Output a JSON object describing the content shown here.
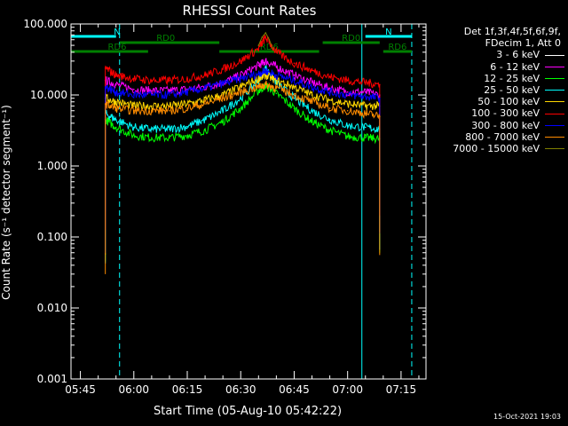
{
  "chart_data": {
    "type": "line",
    "title": "RHESSI Count Rates",
    "xlabel": "Start Time (05-Aug-10 05:42:22)",
    "ylabel": "Count Rate (s⁻¹ detector segment⁻¹)",
    "y_scale": "log",
    "ylim": [
      0.001,
      100
    ],
    "xlim": [
      "05:42:22",
      "07:22:00"
    ],
    "x_ticks": [
      "05:45",
      "06:00",
      "06:15",
      "06:30",
      "06:45",
      "07:00",
      "07:15"
    ],
    "y_ticks": [
      "0.001",
      "0.010",
      "0.100",
      "1.000",
      "10.000",
      "100.000"
    ],
    "legend_header": [
      "Det 1f,3f,4f,5f,6f,9f,",
      "FDecim 1, Att 0"
    ],
    "legend_position": "right, outside plot",
    "series": [
      {
        "name": "3 - 6 keV",
        "color": "#000000",
        "x": [
          "05:52",
          "05:55",
          "06:00",
          "06:05",
          "06:10",
          "06:15",
          "06:20",
          "06:25",
          "06:30",
          "06:35",
          "06:37",
          "06:40",
          "06:45",
          "06:50",
          "06:55",
          "07:00",
          "07:05",
          "07:09"
        ],
        "y": [
          6.0,
          5.0,
          3.5,
          4.5,
          5.5,
          6.5,
          5.5,
          6.5,
          9.5,
          14,
          16,
          14,
          10,
          7.5,
          5.0,
          3.5,
          3.5,
          3.0
        ]
      },
      {
        "name": "6 - 12 keV",
        "color": "#ff00ff",
        "x": [
          "05:52",
          "05:55",
          "06:00",
          "06:05",
          "06:10",
          "06:15",
          "06:20",
          "06:25",
          "06:30",
          "06:35",
          "06:37",
          "06:40",
          "06:45",
          "06:50",
          "06:55",
          "07:00",
          "07:05",
          "07:09"
        ],
        "y": [
          16,
          14,
          12,
          11.5,
          11.5,
          12,
          13,
          15,
          19,
          26,
          30,
          25,
          19,
          15,
          12.5,
          11,
          11,
          10
        ]
      },
      {
        "name": "12 - 25 keV",
        "color": "#00ff00",
        "x": [
          "05:52",
          "05:55",
          "06:00",
          "06:05",
          "06:10",
          "06:15",
          "06:20",
          "06:25",
          "06:30",
          "06:35",
          "06:37",
          "06:40",
          "06:45",
          "06:50",
          "06:55",
          "07:00",
          "07:05",
          "07:09"
        ],
        "y": [
          4.5,
          3.5,
          2.7,
          2.5,
          2.5,
          2.7,
          3.2,
          4.2,
          6.5,
          11.5,
          13.5,
          10.5,
          6.5,
          4.2,
          3.2,
          2.6,
          2.5,
          2.4
        ]
      },
      {
        "name": "25 - 50 keV",
        "color": "#00ffff",
        "x": [
          "05:52",
          "05:55",
          "06:00",
          "06:05",
          "06:10",
          "06:15",
          "06:20",
          "06:25",
          "06:30",
          "06:35",
          "06:37",
          "06:40",
          "06:45",
          "06:50",
          "06:55",
          "07:00",
          "07:05",
          "07:09"
        ],
        "y": [
          5.5,
          4.5,
          3.5,
          3.3,
          3.3,
          3.6,
          4.5,
          6.0,
          9.0,
          16,
          24,
          15,
          9.0,
          6.0,
          4.5,
          3.7,
          3.5,
          3.3
        ]
      },
      {
        "name": "50 - 100 keV",
        "color": "#ffd700",
        "x": [
          "05:52",
          "05:55",
          "06:00",
          "06:05",
          "06:10",
          "06:15",
          "06:20",
          "06:25",
          "06:30",
          "06:35",
          "06:37",
          "06:40",
          "06:45",
          "06:50",
          "06:55",
          "07:00",
          "07:05",
          "07:09"
        ],
        "y": [
          9.0,
          8.0,
          7.0,
          7.0,
          7.0,
          7.5,
          8.5,
          10,
          13,
          17,
          19,
          16,
          13,
          10,
          8.5,
          7.5,
          7.0,
          7.0
        ]
      },
      {
        "name": "100 - 300 keV",
        "color": "#ff0000",
        "x": [
          "05:52",
          "05:55",
          "06:00",
          "06:05",
          "06:10",
          "06:15",
          "06:20",
          "06:25",
          "06:30",
          "06:35",
          "06:37",
          "06:40",
          "06:45",
          "06:50",
          "06:55",
          "07:00",
          "07:05",
          "07:09"
        ],
        "y": [
          24,
          19,
          17,
          16,
          16,
          17,
          19,
          23,
          30,
          45,
          65,
          40,
          28,
          22,
          18,
          16,
          15,
          14
        ]
      },
      {
        "name": "300 - 800 keV",
        "color": "#0000ff",
        "x": [
          "05:52",
          "05:55",
          "06:00",
          "06:05",
          "06:10",
          "06:15",
          "06:20",
          "06:25",
          "06:30",
          "06:35",
          "06:37",
          "06:40",
          "06:45",
          "06:50",
          "06:55",
          "07:00",
          "07:05",
          "07:09"
        ],
        "y": [
          13,
          11,
          10,
          10,
          10,
          11,
          12.5,
          14.5,
          17,
          20,
          22,
          19,
          16,
          13,
          11,
          10,
          9.5,
          9.0
        ]
      },
      {
        "name": "800 - 7000 keV",
        "color": "#ff8c00",
        "x": [
          "05:52",
          "05:55",
          "06:00",
          "06:05",
          "06:10",
          "06:15",
          "06:20",
          "06:25",
          "06:30",
          "06:35",
          "06:37",
          "06:40",
          "06:45",
          "06:50",
          "06:55",
          "07:00",
          "07:05",
          "07:09"
        ],
        "y": [
          7.5,
          6.5,
          6.0,
          6.0,
          6.0,
          6.5,
          7.5,
          9.0,
          11,
          13,
          14,
          12.5,
          10,
          8.0,
          6.5,
          6.0,
          5.5,
          5.0
        ]
      },
      {
        "name": "7000 - 15000 keV",
        "color": "#808000",
        "x": [
          "06:35",
          "06:36",
          "06:37",
          "06:38",
          "06:39"
        ],
        "y": [
          50,
          65,
          75,
          60,
          45
        ]
      }
    ],
    "annotations": [
      {
        "text": "N",
        "color": "#00ffff",
        "bar_start": "05:42:22",
        "bar_end": "05:55"
      },
      {
        "text": "N",
        "color": "#00ffff",
        "bar_start": "07:05",
        "bar_end": "07:18"
      },
      {
        "text": "RD0",
        "color": "#008000",
        "bar_start": "05:56",
        "bar_end": "06:24"
      },
      {
        "text": "RD0",
        "color": "#008000",
        "bar_start": "06:53",
        "bar_end": "07:09"
      },
      {
        "text": "RD6",
        "color": "#008000",
        "bar_start": "05:42:22",
        "bar_end": "06:04"
      },
      {
        "text": "RD6",
        "color": "#008000",
        "bar_start": "06:24",
        "bar_end": "06:52"
      },
      {
        "text": "RD6",
        "color": "#008000",
        "bar_start": "07:10",
        "bar_end": "07:18"
      }
    ],
    "vertical_lines": [
      {
        "time": "05:42:22",
        "style": "solid",
        "color": "#00ffff"
      },
      {
        "time": "05:56",
        "style": "dashed",
        "color": "#00ffff"
      },
      {
        "time": "07:04",
        "style": "solid",
        "color": "#00ffff"
      },
      {
        "time": "07:18",
        "style": "dashed",
        "color": "#00ffff"
      }
    ],
    "grid": false
  },
  "footer_stamp": "15-Oct-2021 19:03"
}
